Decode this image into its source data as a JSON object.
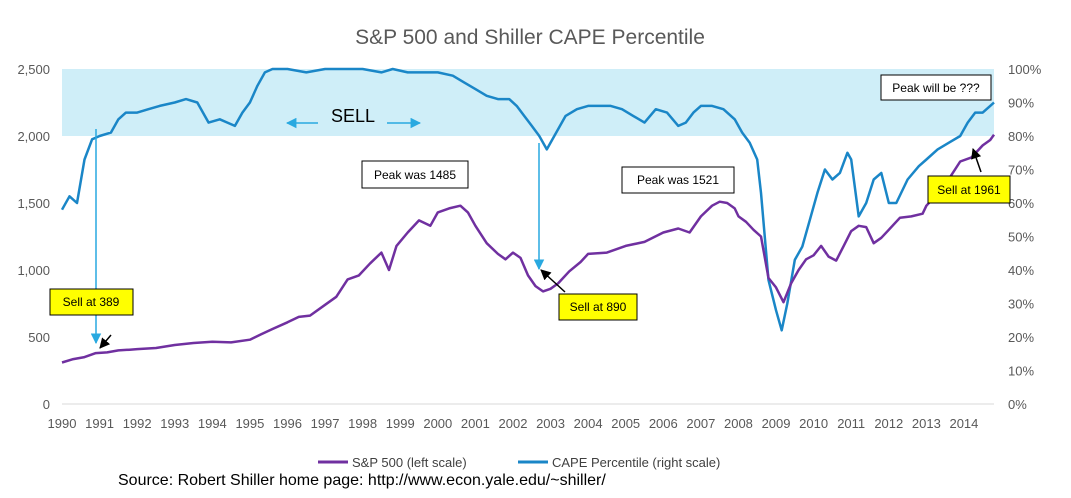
{
  "chart_data": {
    "type": "line",
    "title": "S&P 500 and Shiller CAPE Percentile",
    "xlabel": "",
    "ylabel_left": "",
    "ylabel_right": "",
    "x_ticks": [
      "1990",
      "1991",
      "1992",
      "1993",
      "1994",
      "1995",
      "1996",
      "1997",
      "1998",
      "1999",
      "2000",
      "2001",
      "2002",
      "2003",
      "2004",
      "2005",
      "2006",
      "2007",
      "2008",
      "2009",
      "2010",
      "2011",
      "2012",
      "2013",
      "2014"
    ],
    "y_left_ticks": [
      "0",
      "500",
      "1,000",
      "1,500",
      "2,000",
      "2,500"
    ],
    "y_right_ticks": [
      "0%",
      "10%",
      "20%",
      "30%",
      "40%",
      "50%",
      "60%",
      "70%",
      "80%",
      "90%",
      "100%"
    ],
    "ylim_left": [
      0,
      2500
    ],
    "ylim_right": [
      0,
      100
    ],
    "xlim": [
      1990,
      2014.8
    ],
    "grid": false,
    "legend_position": "bottom",
    "shaded_band": {
      "label": "SELL",
      "from_percent": 80,
      "to_percent": 100,
      "color": "#cfeef8"
    },
    "series": [
      {
        "name": "S&P 500 (left scale)",
        "axis": "left",
        "color": "#7030a0",
        "points": [
          [
            1990.0,
            310
          ],
          [
            1990.3,
            335
          ],
          [
            1990.6,
            350
          ],
          [
            1990.9,
            380
          ],
          [
            1991.2,
            385
          ],
          [
            1991.5,
            400
          ],
          [
            1991.8,
            405
          ],
          [
            1992.0,
            410
          ],
          [
            1992.5,
            418
          ],
          [
            1993.0,
            440
          ],
          [
            1993.5,
            455
          ],
          [
            1994.0,
            465
          ],
          [
            1994.5,
            460
          ],
          [
            1995.0,
            480
          ],
          [
            1995.3,
            520
          ],
          [
            1995.6,
            560
          ],
          [
            1996.0,
            610
          ],
          [
            1996.3,
            650
          ],
          [
            1996.6,
            660
          ],
          [
            1997.0,
            740
          ],
          [
            1997.3,
            800
          ],
          [
            1997.6,
            930
          ],
          [
            1997.9,
            960
          ],
          [
            1998.2,
            1050
          ],
          [
            1998.5,
            1130
          ],
          [
            1998.7,
            1000
          ],
          [
            1998.9,
            1180
          ],
          [
            1999.2,
            1280
          ],
          [
            1999.5,
            1370
          ],
          [
            1999.8,
            1330
          ],
          [
            2000.0,
            1430
          ],
          [
            2000.3,
            1460
          ],
          [
            2000.6,
            1480
          ],
          [
            2000.8,
            1430
          ],
          [
            2001.0,
            1330
          ],
          [
            2001.3,
            1200
          ],
          [
            2001.6,
            1120
          ],
          [
            2001.8,
            1080
          ],
          [
            2002.0,
            1130
          ],
          [
            2002.2,
            1090
          ],
          [
            2002.4,
            960
          ],
          [
            2002.6,
            880
          ],
          [
            2002.8,
            840
          ],
          [
            2003.0,
            860
          ],
          [
            2003.2,
            900
          ],
          [
            2003.5,
            990
          ],
          [
            2003.8,
            1060
          ],
          [
            2004.0,
            1120
          ],
          [
            2004.5,
            1130
          ],
          [
            2005.0,
            1180
          ],
          [
            2005.5,
            1210
          ],
          [
            2006.0,
            1280
          ],
          [
            2006.4,
            1310
          ],
          [
            2006.7,
            1280
          ],
          [
            2007.0,
            1400
          ],
          [
            2007.3,
            1480
          ],
          [
            2007.5,
            1510
          ],
          [
            2007.7,
            1500
          ],
          [
            2007.9,
            1460
          ],
          [
            2008.0,
            1400
          ],
          [
            2008.2,
            1360
          ],
          [
            2008.4,
            1300
          ],
          [
            2008.6,
            1250
          ],
          [
            2008.8,
            940
          ],
          [
            2009.0,
            870
          ],
          [
            2009.2,
            760
          ],
          [
            2009.4,
            900
          ],
          [
            2009.6,
            1000
          ],
          [
            2009.8,
            1080
          ],
          [
            2010.0,
            1110
          ],
          [
            2010.2,
            1180
          ],
          [
            2010.4,
            1100
          ],
          [
            2010.6,
            1070
          ],
          [
            2010.8,
            1180
          ],
          [
            2011.0,
            1290
          ],
          [
            2011.2,
            1330
          ],
          [
            2011.4,
            1320
          ],
          [
            2011.6,
            1200
          ],
          [
            2011.8,
            1240
          ],
          [
            2012.0,
            1300
          ],
          [
            2012.3,
            1390
          ],
          [
            2012.6,
            1400
          ],
          [
            2012.9,
            1420
          ],
          [
            2013.0,
            1480
          ],
          [
            2013.3,
            1570
          ],
          [
            2013.6,
            1680
          ],
          [
            2013.9,
            1810
          ],
          [
            2014.2,
            1840
          ],
          [
            2014.5,
            1930
          ],
          [
            2014.7,
            1970
          ],
          [
            2014.8,
            2010
          ]
        ]
      },
      {
        "name": "CAPE Percentile (right scale)",
        "axis": "right",
        "color": "#1a86c7",
        "points": [
          [
            1990.0,
            58
          ],
          [
            1990.2,
            62
          ],
          [
            1990.4,
            60
          ],
          [
            1990.6,
            73
          ],
          [
            1990.8,
            79
          ],
          [
            1991.0,
            80
          ],
          [
            1991.3,
            81
          ],
          [
            1991.5,
            85
          ],
          [
            1991.7,
            87
          ],
          [
            1992.0,
            87
          ],
          [
            1992.3,
            88
          ],
          [
            1992.6,
            89
          ],
          [
            1993.0,
            90
          ],
          [
            1993.3,
            91
          ],
          [
            1993.6,
            90
          ],
          [
            1993.9,
            84
          ],
          [
            1994.2,
            85
          ],
          [
            1994.4,
            84
          ],
          [
            1994.6,
            83
          ],
          [
            1994.8,
            87
          ],
          [
            1995.0,
            90
          ],
          [
            1995.2,
            95
          ],
          [
            1995.4,
            99
          ],
          [
            1995.6,
            100
          ],
          [
            1996.0,
            100
          ],
          [
            1996.5,
            99
          ],
          [
            1997.0,
            100
          ],
          [
            1997.5,
            100
          ],
          [
            1998.0,
            100
          ],
          [
            1998.5,
            99
          ],
          [
            1998.8,
            100
          ],
          [
            1999.2,
            99
          ],
          [
            1999.6,
            99
          ],
          [
            2000.0,
            99
          ],
          [
            2000.4,
            98
          ],
          [
            2000.7,
            96
          ],
          [
            2001.0,
            94
          ],
          [
            2001.3,
            92
          ],
          [
            2001.6,
            91
          ],
          [
            2001.9,
            91
          ],
          [
            2002.1,
            89
          ],
          [
            2002.3,
            86
          ],
          [
            2002.5,
            83
          ],
          [
            2002.7,
            80
          ],
          [
            2002.9,
            76
          ],
          [
            2003.1,
            80
          ],
          [
            2003.4,
            86
          ],
          [
            2003.7,
            88
          ],
          [
            2004.0,
            89
          ],
          [
            2004.3,
            89
          ],
          [
            2004.6,
            89
          ],
          [
            2004.9,
            88
          ],
          [
            2005.2,
            86
          ],
          [
            2005.5,
            84
          ],
          [
            2005.8,
            88
          ],
          [
            2006.1,
            87
          ],
          [
            2006.4,
            83
          ],
          [
            2006.6,
            84
          ],
          [
            2006.8,
            87
          ],
          [
            2007.0,
            89
          ],
          [
            2007.3,
            89
          ],
          [
            2007.6,
            88
          ],
          [
            2007.9,
            85
          ],
          [
            2008.1,
            81
          ],
          [
            2008.3,
            78
          ],
          [
            2008.5,
            73
          ],
          [
            2008.6,
            63
          ],
          [
            2008.8,
            37
          ],
          [
            2009.0,
            28
          ],
          [
            2009.15,
            22
          ],
          [
            2009.3,
            30
          ],
          [
            2009.5,
            43
          ],
          [
            2009.7,
            47
          ],
          [
            2009.9,
            55
          ],
          [
            2010.1,
            63
          ],
          [
            2010.3,
            70
          ],
          [
            2010.5,
            67
          ],
          [
            2010.7,
            69
          ],
          [
            2010.9,
            75
          ],
          [
            2011.0,
            73
          ],
          [
            2011.2,
            56
          ],
          [
            2011.4,
            60
          ],
          [
            2011.6,
            67
          ],
          [
            2011.8,
            69
          ],
          [
            2012.0,
            60
          ],
          [
            2012.2,
            60
          ],
          [
            2012.5,
            67
          ],
          [
            2012.8,
            71
          ],
          [
            2013.0,
            73
          ],
          [
            2013.3,
            76
          ],
          [
            2013.6,
            78
          ],
          [
            2013.9,
            80
          ],
          [
            2014.1,
            84
          ],
          [
            2014.3,
            87
          ],
          [
            2014.5,
            87
          ],
          [
            2014.7,
            89
          ],
          [
            2014.8,
            90
          ]
        ]
      }
    ],
    "annotations": [
      {
        "text": "SELL",
        "kind": "label"
      },
      {
        "text": "Peak was 1485",
        "kind": "box"
      },
      {
        "text": "Peak was 1521",
        "kind": "box"
      },
      {
        "text": "Peak will be ???",
        "kind": "box"
      },
      {
        "text": "Sell at 389",
        "kind": "highlight"
      },
      {
        "text": "Sell at 890",
        "kind": "highlight"
      },
      {
        "text": "Sell at 1961",
        "kind": "highlight"
      }
    ]
  },
  "source_text": "Source: Robert Shiller home page: http://www.econ.yale.edu/~shiller/"
}
